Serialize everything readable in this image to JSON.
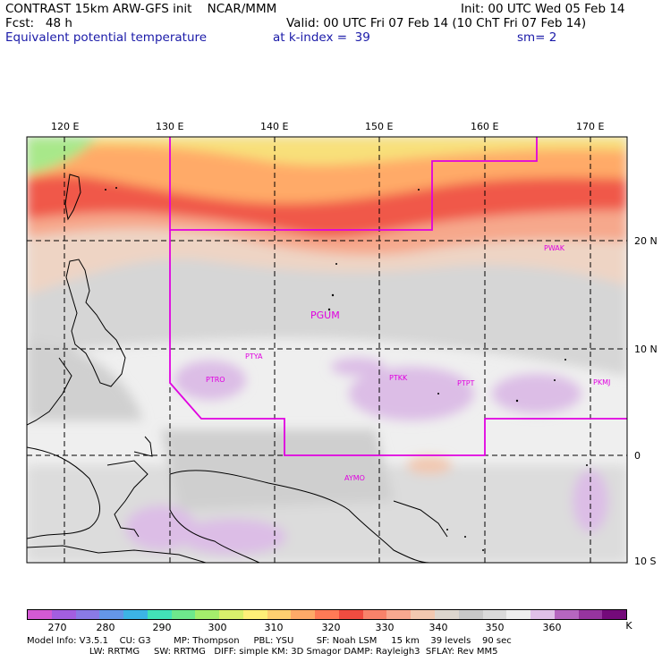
{
  "header": {
    "title": "CONTRAST 15km ARW-GFS init    NCAR/MMM",
    "fcst": "Fcst:   48 h",
    "field": "Equivalent potential temperature",
    "level": "at k-index =  39",
    "smooth": "sm= 2",
    "init": "Init: 00 UTC Wed 05 Feb 14",
    "valid": "Valid: 00 UTC Fri 07 Feb 14 (10 ChT Fri 07 Feb 14)"
  },
  "map": {
    "lon_labels": [
      "120 E",
      "130 E",
      "140 E",
      "150 E",
      "160 E",
      "170 E"
    ],
    "lat_labels": [
      "20 N",
      "10 N",
      "0",
      "10 S"
    ],
    "stations": [
      "PWAK",
      "PGUM",
      "PTYA",
      "PTRO",
      "PTKK",
      "PTPT",
      "PKMJ",
      "AYMO"
    ],
    "domain_outline_color": "#e000e0"
  },
  "colorbar": {
    "ticks": [
      "270",
      "280",
      "290",
      "300",
      "310",
      "320",
      "330",
      "340",
      "350",
      "360"
    ],
    "unit": "K",
    "colors": [
      "#d45ad4",
      "#a35ee0",
      "#8a7ae6",
      "#6496e8",
      "#3cb4e6",
      "#42e2b8",
      "#6ee88c",
      "#a4ee6c",
      "#d8f06c",
      "#fff078",
      "#ffd070",
      "#ffaa68",
      "#ff7a56",
      "#f04c40",
      "#f8826a",
      "#f8a890",
      "#f2c8b0",
      "#ddd6ce",
      "#c8c8c8",
      "#dadada",
      "#eeeeee",
      "#e0c0e8",
      "#b666c0",
      "#96349e",
      "#740a7a"
    ]
  },
  "footer": {
    "line1": "Model Info: V3.5.1    CU: G3        MP: Thompson     PBL: YSU        SF: Noah LSM     15 km    39 levels    90 sec",
    "line2": "                      LW: RRTMG     SW: RRTMG   DIFF: simple KM: 3D Smagor DAMP: Rayleigh3  SFLAY: Rev MM5"
  }
}
